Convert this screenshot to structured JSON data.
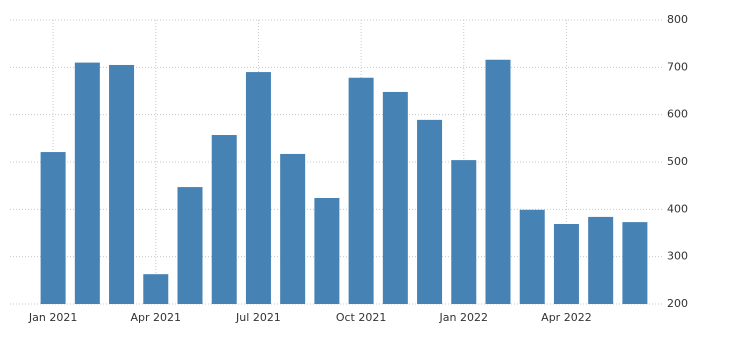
{
  "chart_data": {
    "type": "bar",
    "categories": [
      "Jan 2021",
      null,
      null,
      "Apr 2021",
      null,
      null,
      "Jul 2021",
      null,
      null,
      "Oct 2021",
      null,
      null,
      "Jan 2022",
      null,
      null,
      "Apr 2022",
      null,
      null
    ],
    "values": [
      521,
      710,
      705,
      263,
      447,
      557,
      690,
      517,
      424,
      678,
      648,
      589,
      504,
      716,
      399,
      369,
      384,
      373
    ],
    "color": "#4682b4",
    "ylim": [
      200,
      800
    ],
    "yticks": [
      200,
      300,
      400,
      500,
      600,
      700,
      800
    ],
    "grid": true
  }
}
